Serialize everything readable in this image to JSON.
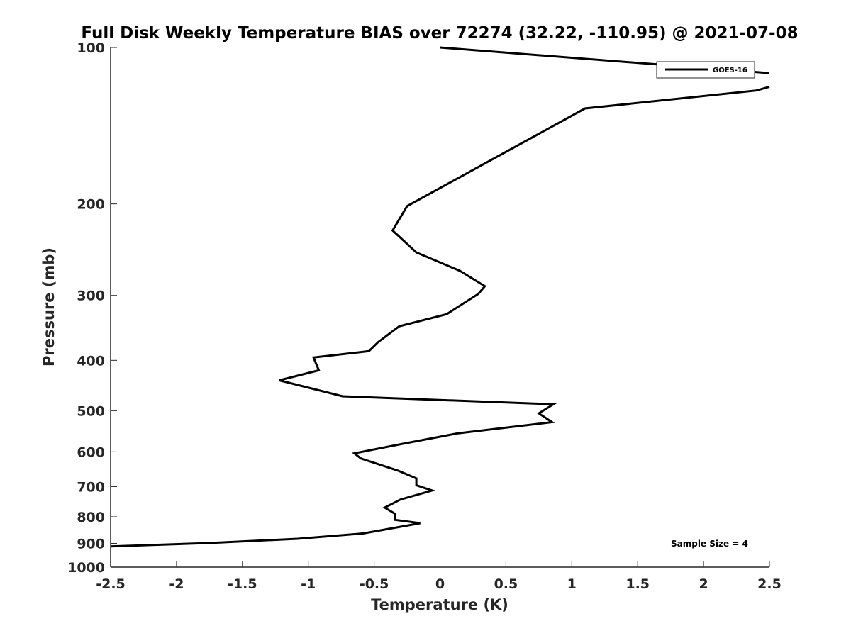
{
  "chart_data": {
    "type": "line",
    "title": "Full Disk Weekly Temperature BIAS over 72274 (32.22, -110.95) @ 2021-07-08",
    "xlabel": "Temperature (K)",
    "ylabel": "Pressure (mb)",
    "xlim": [
      -2.5,
      2.5
    ],
    "ylim": [
      100,
      1000
    ],
    "y_scale": "log",
    "y_reversed": true,
    "grid": false,
    "x_ticks": [
      -2.5,
      -2,
      -1.5,
      -1,
      -0.5,
      0,
      0.5,
      1,
      1.5,
      2,
      2.5
    ],
    "x_tick_labels": [
      "-2.5",
      "-2",
      "-1.5",
      "-1",
      "-0.5",
      "0",
      "0.5",
      "1",
      "1.5",
      "2",
      "2.5"
    ],
    "y_ticks": [
      100,
      200,
      300,
      400,
      500,
      600,
      700,
      800,
      900,
      1000
    ],
    "y_tick_labels": [
      "100",
      "200",
      "300",
      "400",
      "500",
      "600",
      "700",
      "800",
      "900",
      "1000"
    ],
    "legend_position": "top-right",
    "series": [
      {
        "name": "GOES-16",
        "color": "#000000",
        "x": [
          0.0,
          2.5,
          null,
          2.5,
          2.4,
          1.1,
          -0.25,
          -0.36,
          -0.18,
          0.15,
          0.34,
          0.29,
          0.05,
          -0.31,
          -0.47,
          -0.54,
          -0.96,
          -0.92,
          -1.22,
          -0.74,
          0.86,
          0.75,
          0.85,
          0.13,
          -0.3,
          -0.65,
          -0.6,
          -0.32,
          -0.18,
          -0.18,
          -0.06,
          -0.3,
          -0.42,
          -0.34,
          -0.34,
          -0.15,
          -0.58,
          -1.08,
          -1.77,
          -2.5
        ],
        "y": [
          100,
          112,
          null,
          119,
          121,
          131,
          202,
          225,
          248,
          269,
          288,
          298,
          326,
          344,
          369,
          384,
          395,
          418,
          437,
          469,
          486,
          506,
          526,
          553,
          580,
          604,
          618,
          652,
          675,
          696,
          712,
          741,
          768,
          790,
          811,
          823,
          861,
          882,
          899,
          912
        ]
      }
    ],
    "annotations": [
      "Sample Size = 4"
    ]
  }
}
